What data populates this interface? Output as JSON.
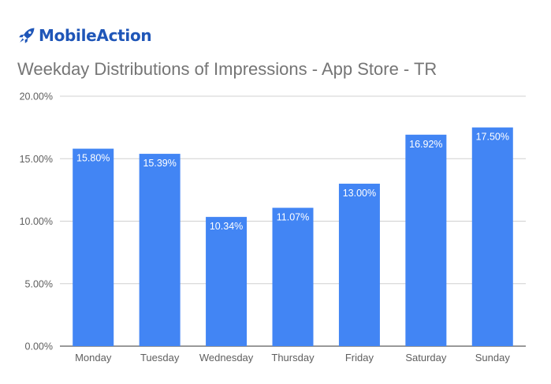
{
  "brand": {
    "name": "MobileAction",
    "icon": "rocket-icon",
    "color": "#1f56b8"
  },
  "chart_data": {
    "type": "bar",
    "title": "Weekday Distributions of Impressions - App Store - TR",
    "xlabel": "",
    "ylabel": "",
    "categories": [
      "Monday",
      "Tuesday",
      "Wednesday",
      "Thursday",
      "Friday",
      "Saturday",
      "Sunday"
    ],
    "values": [
      15.8,
      15.39,
      10.34,
      11.07,
      13.0,
      16.92,
      17.5
    ],
    "data_labels": [
      "15.80%",
      "15.39%",
      "10.34%",
      "11.07%",
      "13.00%",
      "16.92%",
      "17.50%"
    ],
    "ylim": [
      0,
      20
    ],
    "yticks": [
      0,
      5,
      10,
      15,
      20
    ],
    "ytick_labels": [
      "0.00%",
      "5.00%",
      "10.00%",
      "15.00%",
      "20.00%"
    ],
    "bar_color": "#4285f4",
    "grid": true,
    "legend": "none"
  }
}
